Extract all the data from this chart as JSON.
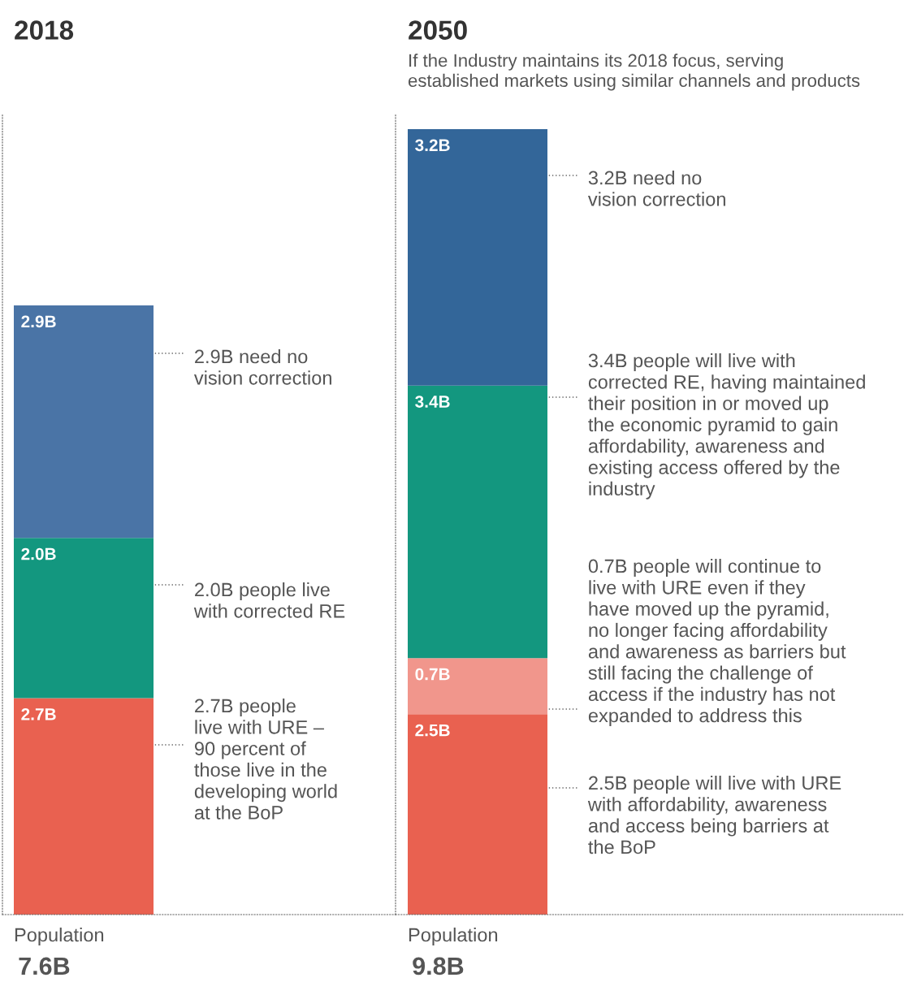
{
  "chart_data": [
    {
      "type": "bar",
      "title": "2018",
      "xlabel": "Population",
      "categories": [
        null
      ],
      "stacked": true,
      "totals": [
        "7.6B"
      ],
      "series": [
        {
          "color": "#e96150",
          "values": [
            2.7
          ],
          "value_labels": [
            "2.7B"
          ]
        },
        {
          "color": "#13977f",
          "values": [
            2.0
          ],
          "value_labels": [
            "2.0B"
          ]
        },
        {
          "color": "#4a74a6",
          "values": [
            2.9
          ],
          "value_labels": [
            "2.9B"
          ]
        }
      ],
      "annotations": [
        "2.9B need no\nvision correction",
        "2.0B people live\nwith corrected RE",
        "2.7B people\nlive with URE –\n90 percent of\nthose live in the\ndeveloping world\nat the BoP"
      ]
    },
    {
      "type": "bar",
      "title": "2050",
      "subtitle": "If the Industry maintains its 2018 focus, serving\nestablished markets using similar channels and products",
      "xlabel": "Population",
      "categories": [
        null
      ],
      "stacked": true,
      "totals": [
        "9.8B"
      ],
      "series": [
        {
          "color": "#e96150",
          "values": [
            2.5
          ],
          "value_labels": [
            "2.5B"
          ]
        },
        {
          "color": "#f1968c",
          "values": [
            0.7
          ],
          "value_labels": [
            "0.7B"
          ]
        },
        {
          "color": "#13977f",
          "values": [
            3.4
          ],
          "value_labels": [
            "3.4B"
          ]
        },
        {
          "color": "#336699",
          "values": [
            3.2
          ],
          "value_labels": [
            "3.2B"
          ]
        }
      ],
      "annotations": [
        "3.2B need no\nvision correction",
        "3.4B people will live with\ncorrected RE, having maintained\ntheir position in or moved up\nthe economic pyramid to gain\naffordability, awareness and\nexisting access offered by the\nindustry",
        "0.7B people will continue to\nlive with URE even if they\nhave moved up the pyramid,\nno longer facing affordability\nand awareness as barriers but\nstill facing the challenge of\naccess if the industry has not\nexpanded to address this",
        "2.5B people will live with URE\nwith affordability, awareness\nand access being barriers at\nthe BoP"
      ]
    }
  ]
}
